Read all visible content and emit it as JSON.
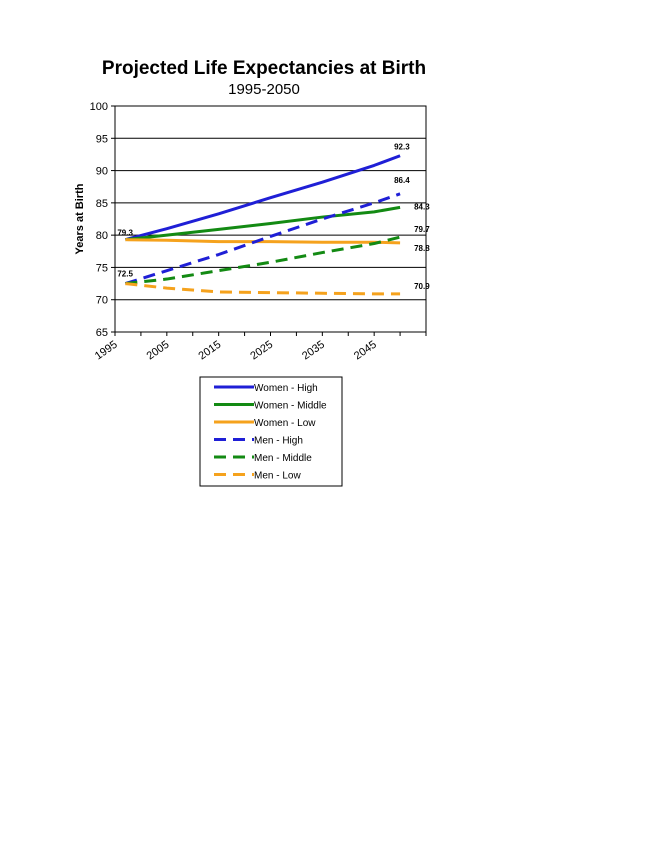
{
  "chart_data": {
    "type": "line",
    "title": "Projected Life Expectancies at Birth",
    "subtitle": "1995-2050",
    "xlabel": "",
    "ylabel": "Years at Birth",
    "xlim": [
      1995,
      2055
    ],
    "ylim": [
      65,
      100
    ],
    "y_ticks": [
      65,
      70,
      75,
      80,
      85,
      90,
      95,
      100
    ],
    "x_ticks": [
      1995,
      2005,
      2015,
      2025,
      2035,
      2045
    ],
    "x_tick_labels": [
      "1995",
      "2005",
      "2015",
      "2025",
      "2035",
      "2045"
    ],
    "grid": "horizontal",
    "legend_position": "bottom",
    "series": [
      {
        "name": "Women - High",
        "color": "#1f1fd6",
        "dash": "solid",
        "x": [
          1997,
          2005,
          2015,
          2025,
          2035,
          2045,
          2050
        ],
        "values": [
          79.3,
          81.0,
          83.3,
          85.8,
          88.2,
          90.8,
          92.3
        ]
      },
      {
        "name": "Women - Middle",
        "color": "#138a13",
        "dash": "solid",
        "x": [
          1997,
          2005,
          2015,
          2025,
          2035,
          2045,
          2050
        ],
        "values": [
          79.3,
          80.0,
          80.9,
          81.8,
          82.8,
          83.6,
          84.3
        ]
      },
      {
        "name": "Women - Low",
        "color": "#f5a21d",
        "dash": "solid",
        "x": [
          1997,
          2005,
          2015,
          2025,
          2035,
          2045,
          2050
        ],
        "values": [
          79.3,
          79.2,
          79.0,
          79.0,
          78.9,
          78.9,
          78.8
        ]
      },
      {
        "name": "Men - High",
        "color": "#1f1fd6",
        "dash": "dashed",
        "x": [
          1997,
          2005,
          2015,
          2025,
          2035,
          2045,
          2050
        ],
        "values": [
          72.5,
          74.5,
          77.0,
          79.8,
          82.5,
          85.0,
          86.4
        ]
      },
      {
        "name": "Men - Middle",
        "color": "#138a13",
        "dash": "dashed",
        "x": [
          1997,
          2005,
          2015,
          2025,
          2035,
          2045,
          2050
        ],
        "values": [
          72.5,
          73.2,
          74.5,
          75.8,
          77.3,
          78.7,
          79.7
        ]
      },
      {
        "name": "Men - Low",
        "color": "#f5a21d",
        "dash": "dashed",
        "x": [
          1997,
          2005,
          2015,
          2025,
          2035,
          2045,
          2050
        ],
        "values": [
          72.5,
          71.8,
          71.2,
          71.1,
          71.0,
          70.9,
          70.9
        ]
      }
    ],
    "data_labels": [
      {
        "text": "79.3",
        "x": 1997,
        "y": 79.3,
        "anchor": "start"
      },
      {
        "text": "72.5",
        "x": 1997,
        "y": 72.5,
        "anchor": "start"
      },
      {
        "text": "92.3",
        "x": 2050,
        "y": 92.3,
        "anchor": "end"
      },
      {
        "text": "86.4",
        "x": 2050,
        "y": 86.4,
        "anchor": "end"
      },
      {
        "text": "84.3",
        "x": 2050,
        "y": 84.3,
        "anchor": "end"
      },
      {
        "text": "79.7",
        "x": 2050,
        "y": 79.7,
        "anchor": "end"
      },
      {
        "text": "78.8",
        "x": 2050,
        "y": 78.8,
        "anchor": "end"
      },
      {
        "text": "70.9",
        "x": 2050,
        "y": 70.9,
        "anchor": "end"
      }
    ]
  }
}
